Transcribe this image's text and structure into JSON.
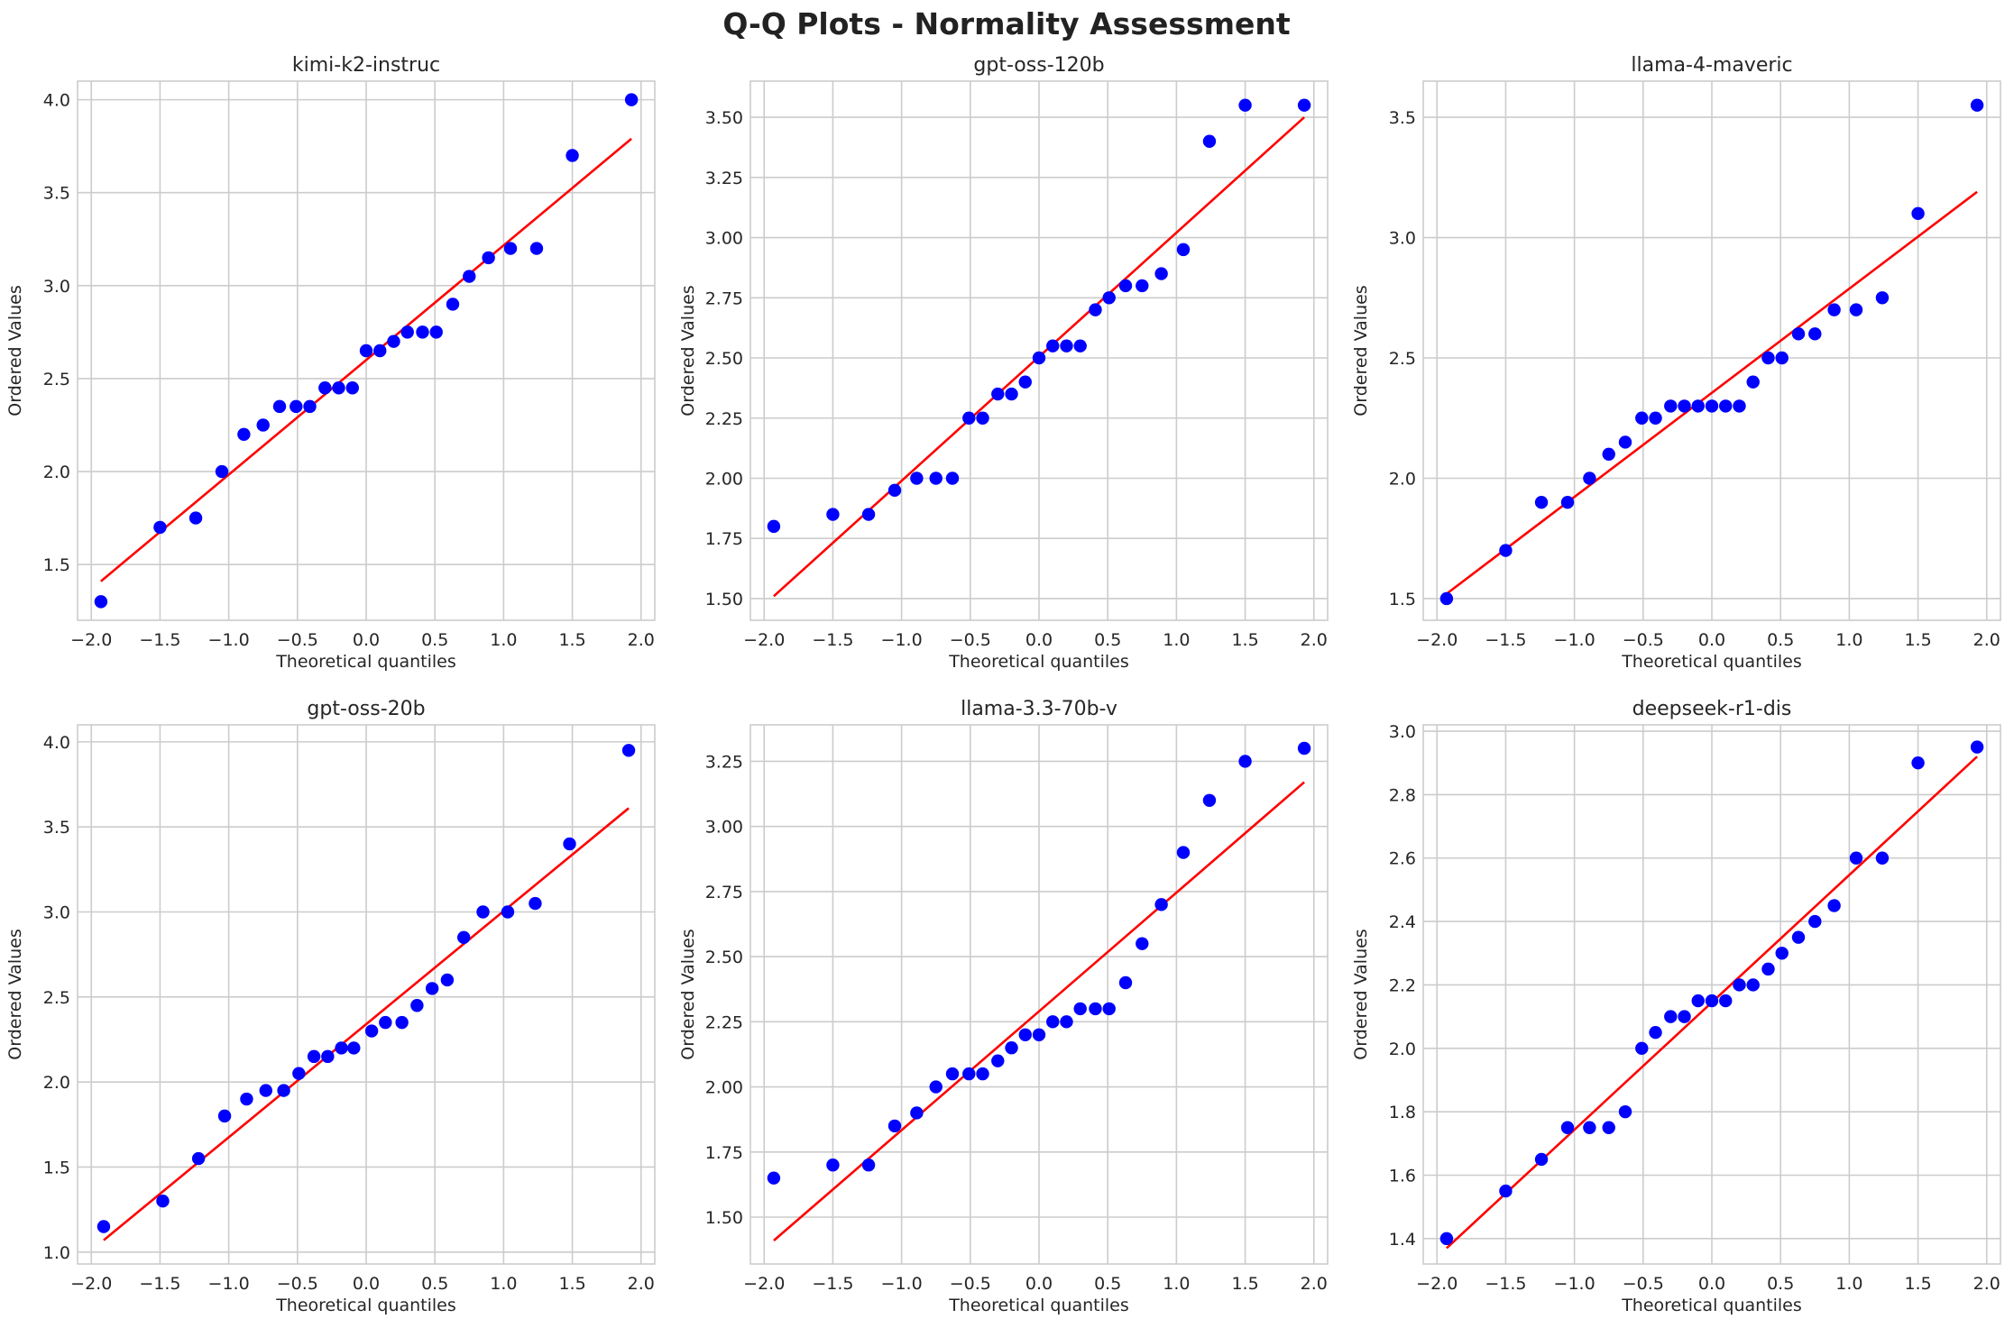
{
  "figure": {
    "title": "Q-Q Plots - Normality Assessment",
    "colors": {
      "points": "#0000ff",
      "fit_line": "#ff0000",
      "grid": "#cccccc"
    }
  },
  "chart_data": [
    {
      "type": "scatter",
      "title": "kimi-k2-instruc",
      "xlabel": "Theoretical quantiles",
      "ylabel": "Ordered Values",
      "xlim": [
        -2.1,
        2.1
      ],
      "ylim": [
        1.2,
        4.1
      ],
      "xticks": [
        -2.0,
        -1.5,
        -1.0,
        -0.5,
        0.0,
        0.5,
        1.0,
        1.5,
        2.0
      ],
      "xtick_labels": [
        "−2.0",
        "−1.5",
        "−1.0",
        "−0.5",
        "0.0",
        "0.5",
        "1.0",
        "1.5",
        "2.0"
      ],
      "yticks": [
        1.5,
        2.0,
        2.5,
        3.0,
        3.5,
        4.0
      ],
      "ytick_labels": [
        "1.5",
        "2.0",
        "2.5",
        "3.0",
        "3.5",
        "4.0"
      ],
      "grid": true,
      "x": [
        -1.93,
        -1.5,
        -1.24,
        -1.05,
        -0.89,
        -0.75,
        -0.63,
        -0.51,
        -0.41,
        -0.3,
        -0.2,
        -0.1,
        0.0,
        0.1,
        0.2,
        0.3,
        0.41,
        0.51,
        0.63,
        0.75,
        0.89,
        1.05,
        1.24,
        1.5,
        1.93
      ],
      "y": [
        1.3,
        1.7,
        1.75,
        2.0,
        2.2,
        2.25,
        2.35,
        2.35,
        2.35,
        2.45,
        2.45,
        2.45,
        2.65,
        2.65,
        2.7,
        2.75,
        2.75,
        2.75,
        2.9,
        3.05,
        3.15,
        3.2,
        3.2,
        3.7,
        4.0
      ],
      "fit_line": {
        "x": [
          -1.93,
          1.93
        ],
        "y": [
          1.41,
          3.79
        ]
      }
    },
    {
      "type": "scatter",
      "title": "gpt-oss-120b",
      "xlabel": "Theoretical quantiles",
      "ylabel": "Ordered Values",
      "xlim": [
        -2.1,
        2.1
      ],
      "ylim": [
        1.41,
        3.65
      ],
      "xticks": [
        -2.0,
        -1.5,
        -1.0,
        -0.5,
        0.0,
        0.5,
        1.0,
        1.5,
        2.0
      ],
      "xtick_labels": [
        "−2.0",
        "−1.5",
        "−1.0",
        "−0.5",
        "0.0",
        "0.5",
        "1.0",
        "1.5",
        "2.0"
      ],
      "yticks": [
        1.5,
        1.75,
        2.0,
        2.25,
        2.5,
        2.75,
        3.0,
        3.25,
        3.5
      ],
      "ytick_labels": [
        "1.50",
        "1.75",
        "2.00",
        "2.25",
        "2.50",
        "2.75",
        "3.00",
        "3.25",
        "3.50"
      ],
      "grid": true,
      "x": [
        -1.93,
        -1.5,
        -1.24,
        -1.05,
        -0.89,
        -0.75,
        -0.63,
        -0.51,
        -0.41,
        -0.3,
        -0.2,
        -0.1,
        0.0,
        0.1,
        0.2,
        0.3,
        0.41,
        0.51,
        0.63,
        0.75,
        0.89,
        1.05,
        1.24,
        1.5,
        1.93
      ],
      "y": [
        1.8,
        1.85,
        1.85,
        1.95,
        2.0,
        2.0,
        2.0,
        2.25,
        2.25,
        2.35,
        2.35,
        2.4,
        2.5,
        2.55,
        2.55,
        2.55,
        2.7,
        2.75,
        2.8,
        2.8,
        2.85,
        2.95,
        3.4,
        3.55,
        3.55
      ],
      "fit_line": {
        "x": [
          -1.93,
          1.93
        ],
        "y": [
          1.51,
          3.5
        ]
      }
    },
    {
      "type": "scatter",
      "title": "llama-4-maveric",
      "xlabel": "Theoretical quantiles",
      "ylabel": "Ordered Values",
      "xlim": [
        -2.1,
        2.1
      ],
      "ylim": [
        1.41,
        3.65
      ],
      "xticks": [
        -2.0,
        -1.5,
        -1.0,
        -0.5,
        0.0,
        0.5,
        1.0,
        1.5,
        2.0
      ],
      "xtick_labels": [
        "−2.0",
        "−1.5",
        "−1.0",
        "−0.5",
        "0.0",
        "0.5",
        "1.0",
        "1.5",
        "2.0"
      ],
      "yticks": [
        1.5,
        2.0,
        2.5,
        3.0,
        3.5
      ],
      "ytick_labels": [
        "1.5",
        "2.0",
        "2.5",
        "3.0",
        "3.5"
      ],
      "grid": true,
      "x": [
        -1.93,
        -1.5,
        -1.24,
        -1.05,
        -0.89,
        -0.75,
        -0.63,
        -0.51,
        -0.41,
        -0.3,
        -0.2,
        -0.1,
        0.0,
        0.1,
        0.2,
        0.3,
        0.41,
        0.51,
        0.63,
        0.75,
        0.89,
        1.05,
        1.24,
        1.5,
        1.93
      ],
      "y": [
        1.5,
        1.7,
        1.9,
        1.9,
        2.0,
        2.1,
        2.15,
        2.25,
        2.25,
        2.3,
        2.3,
        2.3,
        2.3,
        2.3,
        2.3,
        2.4,
        2.5,
        2.5,
        2.6,
        2.6,
        2.7,
        2.7,
        2.75,
        3.1,
        3.55
      ],
      "fit_line": {
        "x": [
          -1.93,
          1.93
        ],
        "y": [
          1.52,
          3.19
        ]
      }
    },
    {
      "type": "scatter",
      "title": "gpt-oss-20b",
      "xlabel": "Theoretical quantiles",
      "ylabel": "Ordered Values",
      "xlim": [
        -2.1,
        2.1
      ],
      "ylim": [
        0.93,
        4.1
      ],
      "xticks": [
        -2.0,
        -1.5,
        -1.0,
        -0.5,
        0.0,
        0.5,
        1.0,
        1.5,
        2.0
      ],
      "xtick_labels": [
        "−2.0",
        "−1.5",
        "−1.0",
        "−0.5",
        "0.0",
        "0.5",
        "1.0",
        "1.5",
        "2.0"
      ],
      "yticks": [
        1.0,
        1.5,
        2.0,
        2.5,
        3.0,
        3.5,
        4.0
      ],
      "ytick_labels": [
        "1.0",
        "1.5",
        "2.0",
        "2.5",
        "3.0",
        "3.5",
        "4.0"
      ],
      "grid": true,
      "x": [
        -1.91,
        -1.48,
        -1.22,
        -1.03,
        -0.87,
        -0.73,
        -0.6,
        -0.49,
        -0.38,
        -0.28,
        -0.18,
        -0.09,
        0.04,
        0.14,
        0.26,
        0.37,
        0.48,
        0.59,
        0.71,
        0.85,
        1.03,
        1.23,
        1.48,
        1.91
      ],
      "y": [
        1.15,
        1.3,
        1.55,
        1.8,
        1.9,
        1.95,
        1.95,
        2.05,
        2.15,
        2.15,
        2.2,
        2.2,
        2.3,
        2.35,
        2.35,
        2.45,
        2.55,
        2.6,
        2.85,
        3.0,
        3.0,
        3.05,
        3.4,
        3.95
      ],
      "fit_line": {
        "x": [
          -1.91,
          1.91
        ],
        "y": [
          1.07,
          3.61
        ]
      }
    },
    {
      "type": "scatter",
      "title": "llama-3.3-70b-v",
      "xlabel": "Theoretical quantiles",
      "ylabel": "Ordered Values",
      "xlim": [
        -2.1,
        2.1
      ],
      "ylim": [
        1.32,
        3.39
      ],
      "xticks": [
        -2.0,
        -1.5,
        -1.0,
        -0.5,
        0.0,
        0.5,
        1.0,
        1.5,
        2.0
      ],
      "xtick_labels": [
        "−2.0",
        "−1.5",
        "−1.0",
        "−0.5",
        "0.0",
        "0.5",
        "1.0",
        "1.5",
        "2.0"
      ],
      "yticks": [
        1.5,
        1.75,
        2.0,
        2.25,
        2.5,
        2.75,
        3.0,
        3.25
      ],
      "ytick_labels": [
        "1.50",
        "1.75",
        "2.00",
        "2.25",
        "2.50",
        "2.75",
        "3.00",
        "3.25"
      ],
      "grid": true,
      "x": [
        -1.93,
        -1.5,
        -1.24,
        -1.05,
        -0.89,
        -0.75,
        -0.63,
        -0.51,
        -0.41,
        -0.3,
        -0.2,
        -0.1,
        0.0,
        0.1,
        0.2,
        0.3,
        0.41,
        0.51,
        0.63,
        0.75,
        0.89,
        1.05,
        1.24,
        1.5,
        1.93
      ],
      "y": [
        1.65,
        1.7,
        1.7,
        1.85,
        1.9,
        2.0,
        2.05,
        2.05,
        2.05,
        2.1,
        2.15,
        2.2,
        2.2,
        2.25,
        2.25,
        2.3,
        2.3,
        2.3,
        2.4,
        2.55,
        2.7,
        2.9,
        3.1,
        3.25,
        3.3
      ],
      "fit_line": {
        "x": [
          -1.93,
          1.93
        ],
        "y": [
          1.41,
          3.17
        ]
      }
    },
    {
      "type": "scatter",
      "title": "deepseek-r1-dis",
      "xlabel": "Theoretical quantiles",
      "ylabel": "Ordered Values",
      "xlim": [
        -2.1,
        2.1
      ],
      "ylim": [
        1.32,
        3.02
      ],
      "xticks": [
        -2.0,
        -1.5,
        -1.0,
        -0.5,
        0.0,
        0.5,
        1.0,
        1.5,
        2.0
      ],
      "xtick_labels": [
        "−2.0",
        "−1.5",
        "−1.0",
        "−0.5",
        "0.0",
        "0.5",
        "1.0",
        "1.5",
        "2.0"
      ],
      "yticks": [
        1.4,
        1.6,
        1.8,
        2.0,
        2.2,
        2.4,
        2.6,
        2.8,
        3.0
      ],
      "ytick_labels": [
        "1.4",
        "1.6",
        "1.8",
        "2.0",
        "2.2",
        "2.4",
        "2.6",
        "2.8",
        "3.0"
      ],
      "grid": true,
      "x": [
        -1.93,
        -1.5,
        -1.24,
        -1.05,
        -0.89,
        -0.75,
        -0.63,
        -0.51,
        -0.41,
        -0.3,
        -0.2,
        -0.1,
        0.0,
        0.1,
        0.2,
        0.3,
        0.41,
        0.51,
        0.63,
        0.75,
        0.89,
        1.05,
        1.24,
        1.5,
        1.93
      ],
      "y": [
        1.4,
        1.55,
        1.65,
        1.75,
        1.75,
        1.75,
        1.8,
        2.0,
        2.05,
        2.1,
        2.1,
        2.15,
        2.15,
        2.15,
        2.2,
        2.2,
        2.25,
        2.3,
        2.35,
        2.4,
        2.45,
        2.6,
        2.6,
        2.9,
        2.95
      ],
      "fit_line": {
        "x": [
          -1.93,
          1.93
        ],
        "y": [
          1.37,
          2.92
        ]
      }
    }
  ]
}
